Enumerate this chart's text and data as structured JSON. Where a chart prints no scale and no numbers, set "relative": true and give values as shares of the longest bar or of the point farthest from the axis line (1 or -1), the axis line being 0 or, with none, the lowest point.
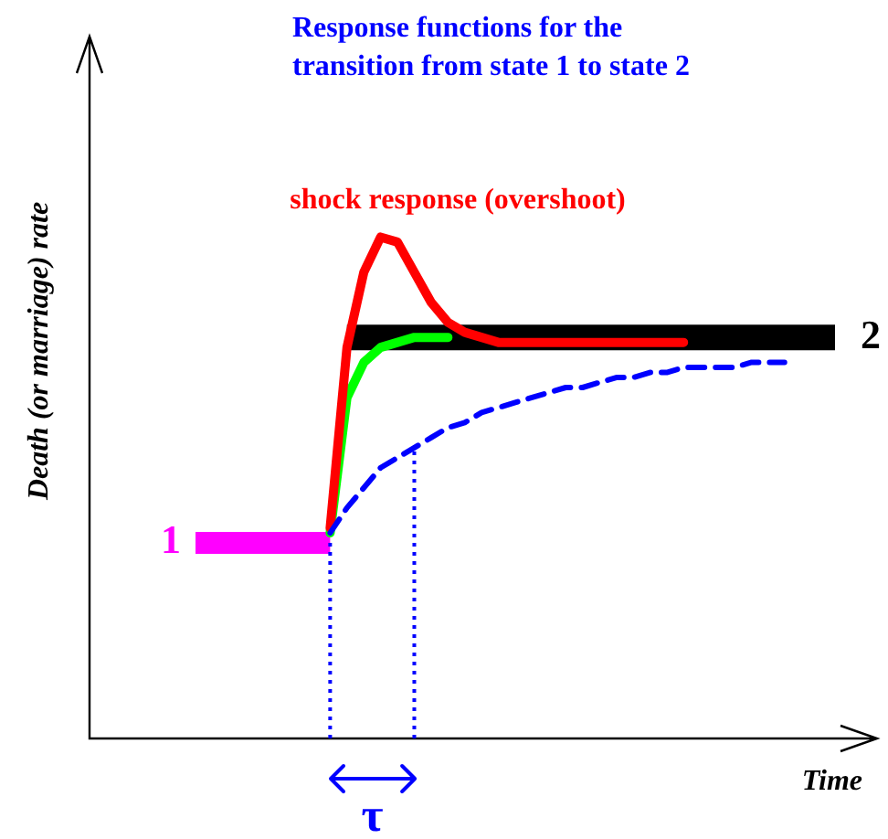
{
  "chart_data": {
    "type": "line",
    "relative": true,
    "title": "Response functions for the\ntransition from state 1 to state 2",
    "xlabel": "Time",
    "ylabel": "Death (or marriage) rate",
    "marker": "none",
    "categories": [
      null,
      null,
      null,
      null,
      null,
      null,
      null,
      null,
      null,
      null,
      null,
      null,
      null,
      null,
      null,
      null,
      null,
      null,
      null,
      null,
      null,
      null,
      null,
      null,
      null,
      null,
      null,
      null,
      null,
      null,
      null,
      null,
      null,
      null,
      null,
      null,
      null,
      null,
      null
    ],
    "series": [
      {
        "name": "1",
        "color": "#ff00ff",
        "line_style": "solid",
        "values": [
          0.39,
          0.39,
          0.39,
          0.39,
          0.39,
          0.39,
          0.39,
          0.39,
          0.39,
          null,
          null,
          null,
          null,
          null,
          null,
          null,
          null,
          null,
          null,
          null,
          null,
          null,
          null,
          null,
          null,
          null,
          null,
          null,
          null,
          null,
          null,
          null,
          null,
          null,
          null,
          null,
          null,
          null,
          null
        ]
      },
      {
        "name": "2",
        "color": "#000000",
        "line_style": "solid",
        "values": [
          null,
          null,
          null,
          null,
          null,
          null,
          null,
          null,
          null,
          0.8,
          0.8,
          0.8,
          0.8,
          0.8,
          0.8,
          0.8,
          0.8,
          0.8,
          0.8,
          0.8,
          0.8,
          0.8,
          0.8,
          0.8,
          0.8,
          0.8,
          0.8,
          0.8,
          0.8,
          0.8,
          0.8,
          0.8,
          0.8,
          0.8,
          0.8,
          0.8,
          0.8,
          0.8,
          0.8
        ]
      },
      {
        "color": "#00ff00",
        "line_style": "solid",
        "values": [
          null,
          null,
          null,
          null,
          null,
          null,
          null,
          null,
          0.41,
          0.68,
          0.75,
          0.78,
          0.79,
          0.8,
          0.8,
          0.8,
          null,
          null,
          null,
          null,
          null,
          null,
          null,
          null,
          null,
          null,
          null,
          null,
          null,
          null,
          null,
          null,
          null,
          null,
          null,
          null,
          null,
          null,
          null
        ]
      },
      {
        "name": "shock response (overshoot)",
        "color": "#ff0000",
        "line_style": "solid",
        "values": [
          null,
          null,
          null,
          null,
          null,
          null,
          null,
          null,
          0.42,
          0.78,
          0.93,
          1.0,
          0.99,
          0.93,
          0.87,
          0.83,
          0.81,
          0.8,
          0.79,
          0.79,
          0.79,
          0.79,
          0.79,
          0.79,
          0.79,
          0.79,
          0.79,
          0.79,
          0.79,
          0.79,
          null,
          null,
          null,
          null,
          null,
          null,
          null,
          null,
          null
        ]
      },
      {
        "color": "#0000ff",
        "line_style": "dashed",
        "values": [
          null,
          null,
          null,
          null,
          null,
          null,
          null,
          null,
          0.41,
          0.46,
          0.5,
          0.54,
          0.56,
          0.58,
          0.6,
          0.62,
          0.63,
          0.65,
          0.66,
          0.67,
          0.68,
          0.69,
          0.7,
          0.7,
          0.71,
          0.72,
          0.72,
          0.73,
          0.73,
          0.74,
          0.74,
          0.74,
          0.74,
          0.75,
          0.75,
          0.75,
          null,
          null,
          null
        ]
      }
    ],
    "annotations": [
      "τ"
    ]
  }
}
